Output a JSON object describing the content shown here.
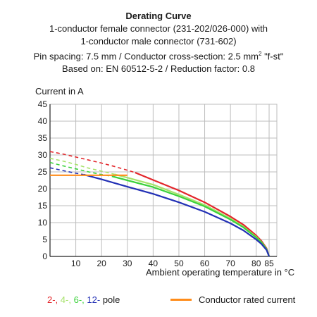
{
  "titles": {
    "line1": "Derating Curve",
    "line2": "1-conductor female connector (231-202/026-000) with",
    "line3": "1-conductor male connector (731-602)",
    "line4_pre": "Pin spacing: 7.5 mm / Conductor cross-section: 2.5 mm",
    "line4_sup": "2",
    "line4_post": " \"f-st\"",
    "line5": "Based on: EN 60512-5-2 / Reduction factor: 0.8"
  },
  "colors": {
    "pole2": "#e3262b",
    "pole4": "#a7e26b",
    "pole6": "#3ad13a",
    "pole12": "#2230b5",
    "rated": "#ff8c1a",
    "grid": "#bdbdbd",
    "axis": "#222222"
  },
  "legend": {
    "pole2": "2-,",
    "pole4": "4-,",
    "pole6": "6-,",
    "pole12": "12-",
    "pole_suffix": "pole",
    "rated": "Conductor rated current"
  },
  "chart_data": {
    "type": "line",
    "ylabel": "Current in A",
    "xlabel": "Ambient operating temperature in °C",
    "xlim": [
      0,
      88
    ],
    "ylim": [
      0,
      45
    ],
    "x_ticks": [
      10,
      20,
      30,
      40,
      50,
      60,
      70,
      80,
      85
    ],
    "y_ticks": [
      0,
      5,
      10,
      15,
      20,
      25,
      30,
      35,
      40,
      45
    ],
    "grid": true,
    "series": [
      {
        "name": "2-pole",
        "color_key": "pole2",
        "dashed_x": [
          0,
          5,
          10,
          15,
          20,
          25,
          30,
          33
        ],
        "dashed_y": [
          31,
          30.3,
          29.4,
          28.5,
          27.6,
          26.6,
          25.5,
          24.8
        ],
        "solid_x": [
          33,
          40,
          50,
          60,
          70,
          75,
          80,
          82,
          84,
          85
        ],
        "solid_y": [
          24.8,
          22.6,
          19.5,
          16.0,
          11.8,
          9.4,
          6.2,
          4.6,
          2.4,
          0
        ]
      },
      {
        "name": "4-pole",
        "color_key": "pole4",
        "dashed_x": [
          0,
          5,
          10,
          15,
          20,
          25
        ],
        "dashed_y": [
          29,
          28.2,
          27.2,
          26.1,
          25.2,
          24.3
        ],
        "solid_x": [
          25,
          30,
          40,
          50,
          60,
          70,
          75,
          80,
          82,
          84,
          85
        ],
        "solid_y": [
          24.3,
          23.3,
          21.2,
          18.3,
          15.2,
          11.2,
          8.8,
          5.8,
          4.3,
          2.2,
          0
        ]
      },
      {
        "name": "6-pole",
        "color_key": "pole6",
        "dashed_x": [
          0,
          5,
          10,
          15,
          20,
          24
        ],
        "dashed_y": [
          27.8,
          26.8,
          25.9,
          25.0,
          24.2,
          23.7
        ],
        "solid_x": [
          24,
          30,
          40,
          50,
          60,
          70,
          75,
          80,
          82,
          84,
          85
        ],
        "solid_y": [
          23.7,
          22.5,
          20.5,
          17.8,
          14.8,
          10.9,
          8.6,
          5.6,
          4.2,
          2.1,
          0
        ]
      },
      {
        "name": "12-pole",
        "color_key": "pole12",
        "dashed_x": [
          0,
          5,
          10,
          13
        ],
        "dashed_y": [
          26.2,
          25.4,
          24.6,
          24.2
        ],
        "solid_x": [
          13,
          20,
          30,
          40,
          50,
          60,
          70,
          75,
          80,
          82,
          84,
          85
        ],
        "solid_y": [
          24.2,
          22.8,
          20.6,
          18.5,
          16.0,
          13.2,
          9.8,
          7.7,
          5.0,
          3.7,
          1.9,
          0
        ]
      },
      {
        "name": "Conductor rated current",
        "color_key": "rated",
        "solid_x": [
          0,
          30
        ],
        "solid_y": [
          24,
          24
        ]
      }
    ]
  }
}
